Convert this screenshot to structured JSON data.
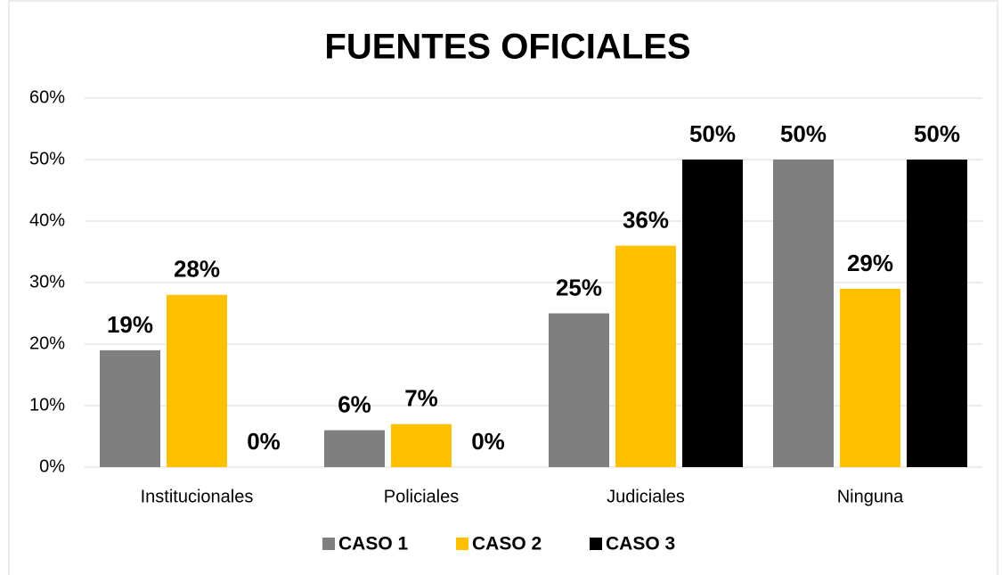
{
  "chart_data": {
    "type": "bar",
    "title": "FUENTES OFICIALES",
    "categories": [
      "Institucionales",
      "Policiales",
      "Judiciales",
      "Ninguna"
    ],
    "series": [
      {
        "name": "CASO 1",
        "color": "#7f7f7f",
        "values": [
          19,
          6,
          25,
          50
        ],
        "value_labels": [
          "19%",
          "6%",
          "25%",
          "50%"
        ]
      },
      {
        "name": "CASO 2",
        "color": "#ffc000",
        "values": [
          28,
          7,
          36,
          29
        ],
        "value_labels": [
          "28%",
          "7%",
          "36%",
          "29%"
        ]
      },
      {
        "name": "CASO 3",
        "color": "#000000",
        "values": [
          0,
          0,
          50,
          50
        ],
        "value_labels": [
          "0%",
          "0%",
          "50%",
          "50%"
        ]
      }
    ],
    "ylim": [
      0,
      60
    ],
    "yticks": [
      {
        "value": 0,
        "label": "0%"
      },
      {
        "value": 10,
        "label": "10%"
      },
      {
        "value": 20,
        "label": "20%"
      },
      {
        "value": 30,
        "label": "30%"
      },
      {
        "value": 40,
        "label": "40%"
      },
      {
        "value": 50,
        "label": "50%"
      },
      {
        "value": 60,
        "label": "60%"
      }
    ],
    "grid": true,
    "legend": "bottom"
  }
}
